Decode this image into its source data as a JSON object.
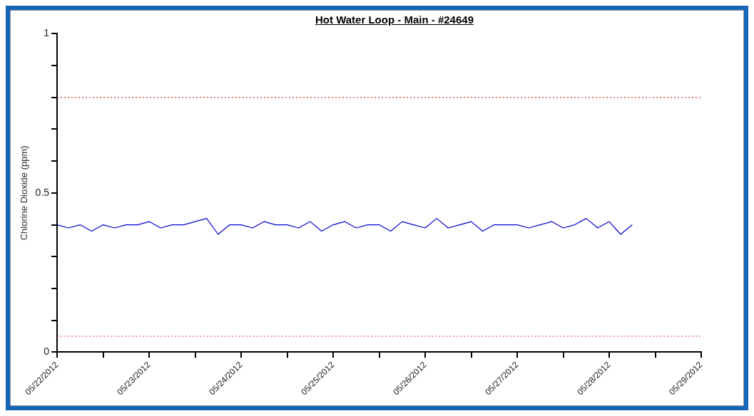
{
  "chart_data": {
    "type": "line",
    "title": "Hot Water Loop - Main - #24649",
    "ylabel": "Chlorine Dioxide (ppm)",
    "x": [
      "2012-05-22T00:00",
      "2012-05-22T03:00",
      "2012-05-22T06:00",
      "2012-05-22T09:00",
      "2012-05-22T12:00",
      "2012-05-22T15:00",
      "2012-05-22T18:00",
      "2012-05-22T21:00",
      "2012-05-23T00:00",
      "2012-05-23T03:00",
      "2012-05-23T06:00",
      "2012-05-23T09:00",
      "2012-05-23T12:00",
      "2012-05-23T15:00",
      "2012-05-23T18:00",
      "2012-05-23T21:00",
      "2012-05-24T00:00",
      "2012-05-24T03:00",
      "2012-05-24T06:00",
      "2012-05-24T09:00",
      "2012-05-24T12:00",
      "2012-05-24T15:00",
      "2012-05-24T18:00",
      "2012-05-24T21:00",
      "2012-05-25T00:00",
      "2012-05-25T03:00",
      "2012-05-25T06:00",
      "2012-05-25T09:00",
      "2012-05-25T12:00",
      "2012-05-25T15:00",
      "2012-05-25T18:00",
      "2012-05-25T21:00",
      "2012-05-26T00:00",
      "2012-05-26T03:00",
      "2012-05-26T06:00",
      "2012-05-26T09:00",
      "2012-05-26T12:00",
      "2012-05-26T15:00",
      "2012-05-26T18:00",
      "2012-05-26T21:00",
      "2012-05-27T00:00",
      "2012-05-27T03:00",
      "2012-05-27T06:00",
      "2012-05-27T09:00",
      "2012-05-27T12:00",
      "2012-05-27T15:00",
      "2012-05-27T18:00",
      "2012-05-27T21:00",
      "2012-05-28T00:00",
      "2012-05-28T03:00",
      "2012-05-28T06:00"
    ],
    "series": [
      {
        "color": "#0000cc",
        "values": [
          0.4,
          0.39,
          0.4,
          0.38,
          0.4,
          0.39,
          0.4,
          0.4,
          0.41,
          0.39,
          0.4,
          0.4,
          0.41,
          0.42,
          0.37,
          0.4,
          0.4,
          0.39,
          0.41,
          0.4,
          0.4,
          0.39,
          0.41,
          0.38,
          0.4,
          0.41,
          0.39,
          0.4,
          0.4,
          0.38,
          0.41,
          0.4,
          0.39,
          0.42,
          0.39,
          0.4,
          0.41,
          0.38,
          0.4,
          0.4,
          0.4,
          0.39,
          0.4,
          0.41,
          0.39,
          0.4,
          0.42,
          0.39,
          0.41,
          0.37,
          0.4
        ]
      }
    ],
    "xlim": [
      "2012-05-22",
      "2012-05-29"
    ],
    "xticks": [
      {
        "value": "2012-05-22",
        "label": "05/22/2012"
      },
      {
        "value": "2012-05-22T12:00",
        "label": null
      },
      {
        "value": "2012-05-23",
        "label": "05/23/2012"
      },
      {
        "value": "2012-05-23T12:00",
        "label": null
      },
      {
        "value": "2012-05-24",
        "label": "05/24/2012"
      },
      {
        "value": "2012-05-24T12:00",
        "label": null
      },
      {
        "value": "2012-05-25",
        "label": "05/25/2012"
      },
      {
        "value": "2012-05-25T12:00",
        "label": null
      },
      {
        "value": "2012-05-26",
        "label": "05/26/2012"
      },
      {
        "value": "2012-05-26T12:00",
        "label": null
      },
      {
        "value": "2012-05-27",
        "label": "05/27/2012"
      },
      {
        "value": "2012-05-27T12:00",
        "label": null
      },
      {
        "value": "2012-05-28",
        "label": "05/28/2012"
      },
      {
        "value": "2012-05-28T12:00",
        "label": null
      },
      {
        "value": "2012-05-29",
        "label": "05/29/2012"
      }
    ],
    "ylim": [
      0,
      1
    ],
    "yticks": [
      0,
      {
        "value": 0.1,
        "label": null
      },
      {
        "value": 0.2,
        "label": null
      },
      {
        "value": 0.3,
        "label": null
      },
      {
        "value": 0.4,
        "label": null
      },
      0.5,
      {
        "value": 0.6,
        "label": null
      },
      {
        "value": 0.7,
        "label": null
      },
      {
        "value": 0.8,
        "label": null
      },
      {
        "value": 0.9,
        "label": null
      },
      1
    ],
    "ref_lines": [
      {
        "axis": "y",
        "value": 0.8,
        "color": "#cc3333",
        "line_style": "dotted"
      },
      {
        "axis": "y",
        "value": 0.05,
        "color": "#cc3333",
        "line_style": "dotted"
      }
    ],
    "marker": "none",
    "line_style": "solid",
    "grid": false,
    "legend": false
  }
}
